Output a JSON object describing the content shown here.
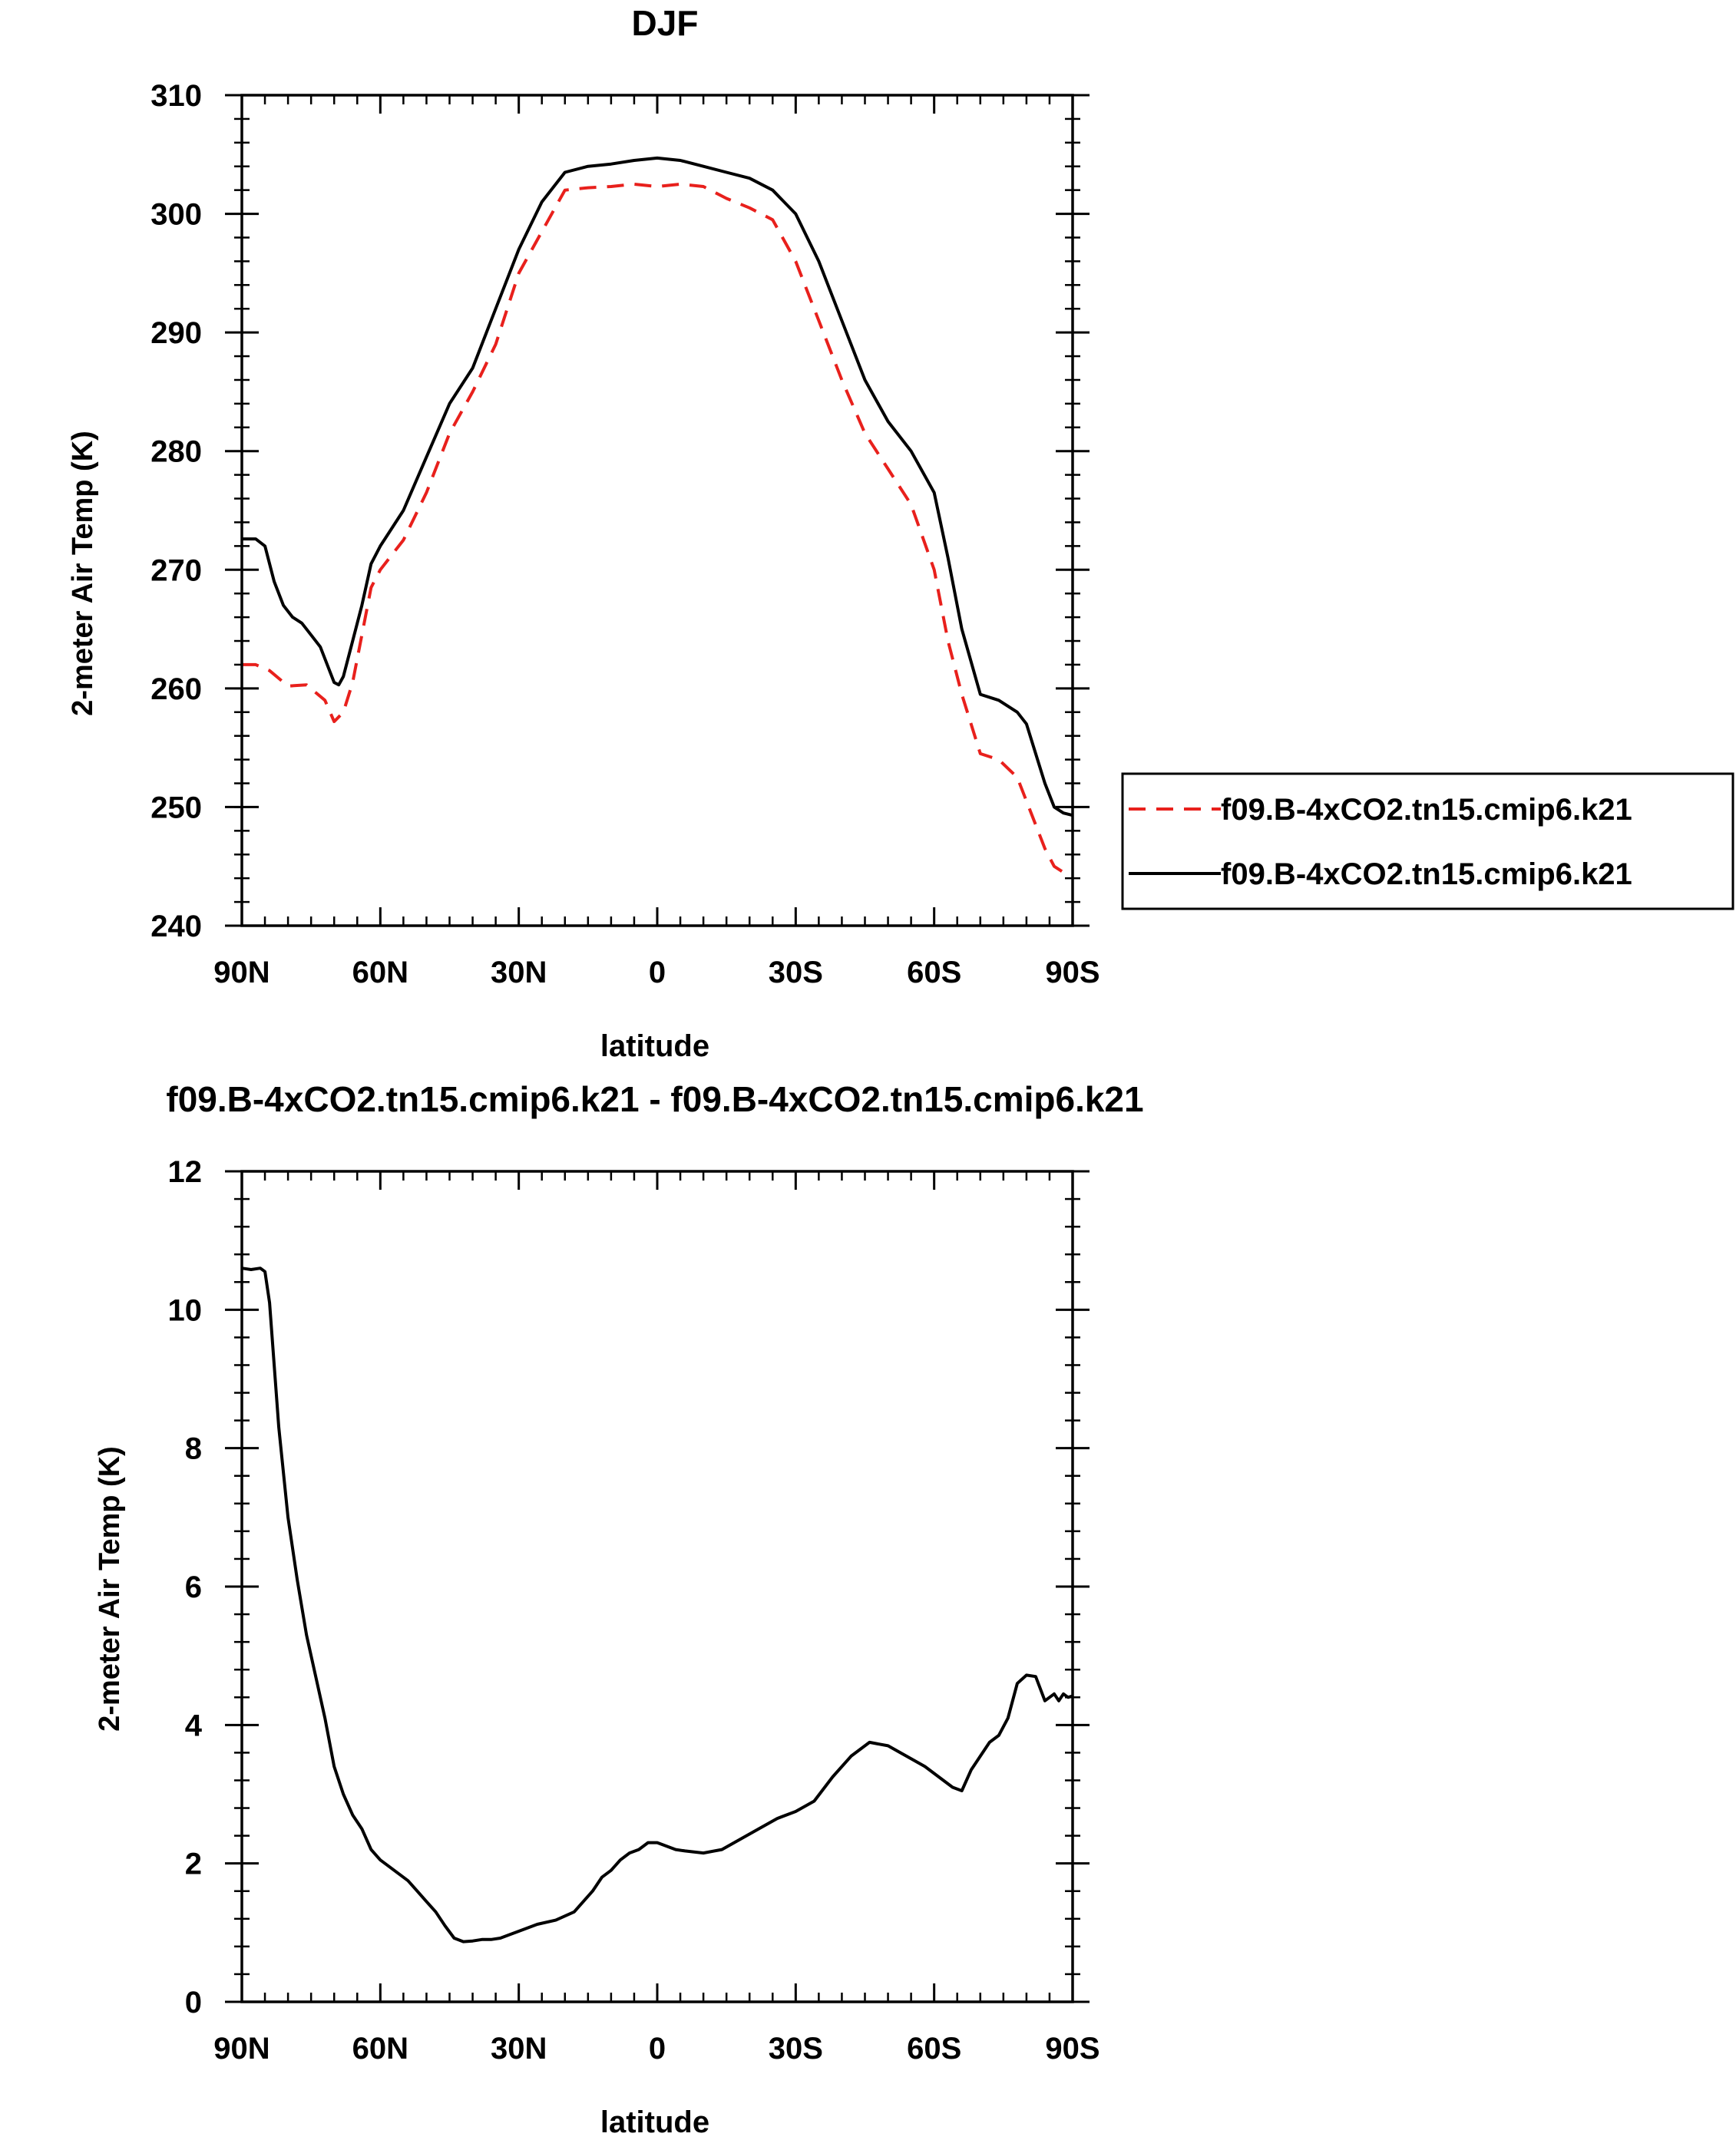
{
  "chart_data": [
    {
      "type": "line",
      "title": "DJF",
      "xlabel": "latitude",
      "ylabel": "2-meter Air Temp (K)",
      "x_unit": "degrees latitude (90 = 90N, -90 = 90S)",
      "xlim": [
        90,
        -90
      ],
      "ylim": [
        240,
        310
      ],
      "x_ticks": [
        90,
        60,
        30,
        0,
        -30,
        -60,
        -90
      ],
      "x_tick_labels": [
        "90N",
        "60N",
        "30N",
        "0",
        "30S",
        "60S",
        "90S"
      ],
      "y_ticks": [
        240,
        250,
        260,
        270,
        280,
        290,
        300,
        310
      ],
      "y_tick_labels": [
        "240",
        "250",
        "260",
        "270",
        "280",
        "290",
        "300",
        "310"
      ],
      "legend": {
        "placement": "right",
        "entries": [
          {
            "label": "f09.B-4xCO2.tn15.cmip6.k21",
            "color": "#e8201c",
            "dash": "dashed"
          },
          {
            "label": "f09.B-4xCO2.tn15.cmip6.k21",
            "color": "#000000",
            "dash": "solid"
          }
        ]
      },
      "series": [
        {
          "name": "f09.B-4xCO2.tn15.cmip6.k21",
          "color": "#e8201c",
          "dash": "dashed",
          "x": [
            90,
            87,
            84,
            80,
            76,
            72,
            70,
            68,
            66,
            64,
            62,
            60,
            55,
            50,
            45,
            40,
            35,
            30,
            25,
            20,
            15,
            10,
            5,
            0,
            -5,
            -10,
            -15,
            -20,
            -25,
            -30,
            -35,
            -40,
            -45,
            -50,
            -55,
            -60,
            -63,
            -66,
            -70,
            -74,
            -78,
            -80,
            -82,
            -84,
            -86,
            -88,
            -90
          ],
          "y": [
            262.0,
            262.0,
            261.5,
            260.2,
            260.3,
            259.0,
            257.2,
            258.0,
            260.5,
            264.5,
            268.5,
            270.0,
            272.5,
            276.5,
            281.5,
            285.0,
            289.0,
            295.0,
            298.5,
            302.0,
            302.2,
            302.3,
            302.5,
            302.3,
            302.5,
            302.3,
            301.3,
            300.5,
            299.5,
            296.0,
            291.0,
            286.0,
            281.5,
            278.5,
            275.5,
            270.0,
            264.0,
            259.5,
            254.5,
            254.0,
            252.5,
            250.5,
            248.5,
            246.5,
            245.0,
            244.5,
            244.3
          ]
        },
        {
          "name": "f09.B-4xCO2.tn15.cmip6.k21",
          "color": "#000000",
          "dash": "solid",
          "x": [
            90,
            87,
            85,
            83,
            81,
            79,
            77,
            75,
            73,
            71,
            70,
            69,
            68,
            66,
            64,
            62,
            60,
            55,
            50,
            45,
            40,
            35,
            30,
            25,
            20,
            15,
            10,
            5,
            0,
            -5,
            -10,
            -15,
            -20,
            -25,
            -30,
            -35,
            -40,
            -45,
            -50,
            -55,
            -60,
            -63,
            -66,
            -70,
            -74,
            -78,
            -80,
            -82,
            -84,
            -86,
            -88,
            -90
          ],
          "y": [
            272.6,
            272.6,
            272.0,
            269.0,
            267.0,
            266.0,
            265.5,
            264.5,
            263.5,
            261.5,
            260.5,
            260.3,
            261.0,
            264.0,
            267.0,
            270.5,
            272.0,
            275.0,
            279.5,
            284.0,
            287.0,
            292.0,
            297.0,
            301.0,
            303.5,
            304.0,
            304.2,
            304.5,
            304.7,
            304.5,
            304.0,
            303.5,
            303.0,
            302.0,
            300.0,
            296.0,
            291.0,
            286.0,
            282.5,
            280.0,
            276.5,
            271.0,
            265.0,
            259.5,
            259.0,
            258.0,
            257.0,
            254.5,
            252.0,
            250.0,
            249.5,
            249.3
          ]
        }
      ]
    },
    {
      "type": "line",
      "title": "f09.B-4xCO2.tn15.cmip6.k21 - f09.B-4xCO2.tn15.cmip6.k21",
      "xlabel": "latitude",
      "ylabel": "2-meter Air Temp (K)",
      "x_unit": "degrees latitude (90 = 90N, -90 = 90S)",
      "xlim": [
        90,
        -90
      ],
      "ylim": [
        0,
        12
      ],
      "x_ticks": [
        90,
        60,
        30,
        0,
        -30,
        -60,
        -90
      ],
      "x_tick_labels": [
        "90N",
        "60N",
        "30N",
        "0",
        "30S",
        "60S",
        "90S"
      ],
      "y_ticks": [
        0,
        2,
        4,
        6,
        8,
        10,
        12
      ],
      "y_tick_labels": [
        "0",
        "2",
        "4",
        "6",
        "8",
        "10",
        "12"
      ],
      "series": [
        {
          "color": "#000000",
          "dash": "solid",
          "x": [
            90,
            88,
            86,
            85,
            84,
            82,
            80,
            78,
            76,
            74,
            72,
            70,
            68,
            66,
            64,
            62,
            60,
            58,
            56,
            54,
            52,
            50,
            48,
            46,
            44,
            42,
            40,
            38,
            36,
            34,
            32,
            30,
            26,
            22,
            18,
            14,
            12,
            10,
            8,
            6,
            4,
            2,
            0,
            -2,
            -4,
            -6,
            -10,
            -14,
            -18,
            -22,
            -26,
            -30,
            -34,
            -38,
            -42,
            -46,
            -50,
            -54,
            -58,
            -62,
            -64,
            -66,
            -68,
            -70,
            -72,
            -74,
            -76,
            -78,
            -80,
            -82,
            -84,
            -86,
            -87,
            -88,
            -89,
            -90
          ],
          "y": [
            10.6,
            10.58,
            10.6,
            10.55,
            10.1,
            8.3,
            7.0,
            6.1,
            5.3,
            4.7,
            4.1,
            3.4,
            3.0,
            2.7,
            2.5,
            2.2,
            2.05,
            1.95,
            1.85,
            1.75,
            1.6,
            1.45,
            1.3,
            1.1,
            0.92,
            0.87,
            0.88,
            0.9,
            0.9,
            0.92,
            0.97,
            1.02,
            1.12,
            1.18,
            1.3,
            1.6,
            1.8,
            1.9,
            2.05,
            2.15,
            2.2,
            2.3,
            2.3,
            2.25,
            2.2,
            2.18,
            2.15,
            2.2,
            2.35,
            2.5,
            2.65,
            2.75,
            2.9,
            3.25,
            3.55,
            3.75,
            3.7,
            3.55,
            3.4,
            3.2,
            3.1,
            3.05,
            3.35,
            3.55,
            3.75,
            3.85,
            4.1,
            4.6,
            4.72,
            4.7,
            4.35,
            4.45,
            4.35,
            4.45,
            4.4,
            4.42
          ]
        }
      ]
    }
  ]
}
